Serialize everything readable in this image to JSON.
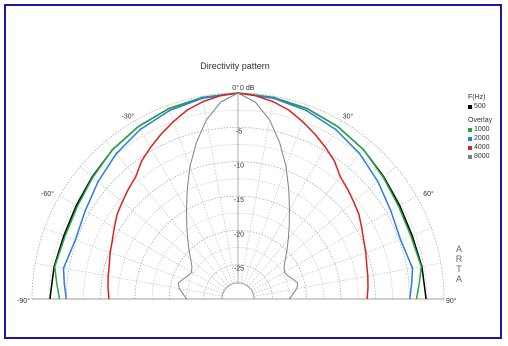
{
  "chart_data": {
    "type": "polar-line",
    "title": "Directivity pattern",
    "angle_unit": "deg",
    "angle_range": [
      -90,
      90
    ],
    "angle_ticks": [
      {
        "deg": -90,
        "label": "-90°"
      },
      {
        "deg": -60,
        "label": "-60°"
      },
      {
        "deg": -30,
        "label": "-30°"
      },
      {
        "deg": 0,
        "label": "0°"
      },
      {
        "deg": 30,
        "label": "30°"
      },
      {
        "deg": 60,
        "label": "60°"
      },
      {
        "deg": 90,
        "label": "90°"
      }
    ],
    "radial_unit": "dB",
    "radial_range": [
      -30,
      0
    ],
    "radial_ticks": [
      {
        "value": 0,
        "label": "0 dB"
      },
      {
        "value": -5,
        "label": "-5"
      },
      {
        "value": -10,
        "label": "-10"
      },
      {
        "value": -15,
        "label": "-15"
      },
      {
        "value": -20,
        "label": "-20"
      },
      {
        "value": -25,
        "label": "-25"
      }
    ],
    "legend": {
      "header": "F(Hz)",
      "overlay_header": "Overlay",
      "entries": [
        {
          "label": "500",
          "color": "#000000"
        },
        {
          "label": "1000",
          "color": "#22aa44"
        },
        {
          "label": "2000",
          "color": "#2a7de1"
        },
        {
          "label": "4000",
          "color": "#e02020"
        },
        {
          "label": "8000",
          "color": "#808080"
        }
      ]
    },
    "series": [
      {
        "name": "500",
        "color": "#000000",
        "angles": [
          0,
          10,
          20,
          30,
          40,
          50,
          60,
          70,
          80,
          90
        ],
        "values": [
          0,
          -0.2,
          -0.5,
          -1.0,
          -1.6,
          -2.3,
          -2.8,
          -3.0,
          -2.8,
          -2.6
        ]
      },
      {
        "name": "1000",
        "color": "#22aa44",
        "angles": [
          0,
          10,
          20,
          30,
          40,
          50,
          60,
          70,
          80,
          85,
          90
        ],
        "values": [
          0,
          -0.2,
          -0.5,
          -1.0,
          -1.6,
          -2.4,
          -3.0,
          -3.2,
          -2.9,
          -3.5,
          -4.0
        ]
      },
      {
        "name": "2000",
        "color": "#2a7de1",
        "angles": [
          0,
          10,
          20,
          30,
          40,
          50,
          60,
          70,
          80,
          85,
          90
        ],
        "values": [
          0,
          -0.3,
          -0.8,
          -1.5,
          -2.4,
          -3.4,
          -4.3,
          -4.8,
          -4.2,
          -4.6,
          -5.0
        ]
      },
      {
        "name": "4000",
        "color": "#e02020",
        "angles": [
          0,
          5,
          10,
          15,
          20,
          25,
          30,
          35,
          40,
          45,
          50,
          55,
          60,
          65,
          70,
          75,
          80,
          85,
          90
        ],
        "values": [
          0,
          -0.3,
          -0.8,
          -1.5,
          -2.5,
          -3.5,
          -4.5,
          -5.5,
          -6.8,
          -7.4,
          -8.0,
          -8.5,
          -9.2,
          -9.8,
          -10.2,
          -10.6,
          -10.8,
          -11.0,
          -11.2
        ]
      },
      {
        "name": "8000",
        "color": "#808080",
        "angles": [
          0,
          5,
          10,
          15,
          20,
          25,
          30,
          35,
          40,
          45,
          50,
          55,
          60,
          65,
          70,
          75,
          80,
          85,
          90
        ],
        "values": [
          0,
          -1.2,
          -3.5,
          -6.5,
          -9.5,
          -12.5,
          -15.0,
          -17.0,
          -18.6,
          -19.9,
          -21.0,
          -21.8,
          -22.2,
          -22.0,
          -21.5,
          -21.0,
          -21.3,
          -22.0,
          -22.5
        ]
      }
    ],
    "grid": true,
    "legend_position": "right"
  },
  "side_text": "ARTA"
}
